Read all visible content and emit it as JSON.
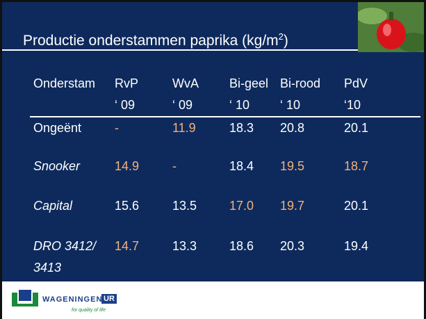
{
  "header": {
    "title": "Productie onderstammen paprika (kg/m",
    "title_sup": "2",
    "title_end": ")"
  },
  "table": {
    "columns": [
      [
        "Onderstam"
      ],
      [
        "RvP",
        "‘ 09"
      ],
      [
        "WvA",
        "‘ 09"
      ],
      [
        "Bi-geel",
        "‘ 10"
      ],
      [
        "Bi-rood",
        "‘ 10"
      ],
      [
        "PdV",
        "‘10"
      ]
    ],
    "rows": [
      [
        {
          "text": "Ongeënt",
          "italic": false
        },
        {
          "text": "-",
          "color": "#f2b27a"
        },
        {
          "text": "11.9",
          "color": "#f2b27a"
        },
        {
          "text": "18.3",
          "color": "#ffffff"
        },
        {
          "text": "20.8",
          "color": "#ffffff"
        },
        {
          "text": "20.1",
          "color": "#ffffff"
        }
      ],
      [
        {
          "text": "Snooker",
          "italic": true
        },
        {
          "text": "14.9",
          "color": "#f2b27a"
        },
        {
          "text": "-",
          "color": "#f2b27a"
        },
        {
          "text": "18.4",
          "color": "#ffffff"
        },
        {
          "text": "19.5",
          "color": "#f2b27a"
        },
        {
          "text": "18.7",
          "color": "#f2b27a"
        }
      ],
      [
        {
          "text": "Capital",
          "italic": true
        },
        {
          "text": "15.6",
          "color": "#ffffff"
        },
        {
          "text": "13.5",
          "color": "#ffffff"
        },
        {
          "text": "17.0",
          "color": "#f2b27a"
        },
        {
          "text": "19.7",
          "color": "#f2b27a"
        },
        {
          "text": "20.1",
          "color": "#ffffff"
        }
      ],
      [
        {
          "text": "DRO 3412/ 3413",
          "italic": true
        },
        {
          "text": "14.7",
          "color": "#f2b27a"
        },
        {
          "text": "13.3",
          "color": "#ffffff"
        },
        {
          "text": "18.6",
          "color": "#ffffff"
        },
        {
          "text": "20.3",
          "color": "#ffffff"
        },
        {
          "text": "19.4",
          "color": "#ffffff"
        }
      ]
    ]
  },
  "footer": {
    "logo": "WAGENINGEN",
    "logo_box": "UR",
    "tagline": "for quality of life"
  }
}
